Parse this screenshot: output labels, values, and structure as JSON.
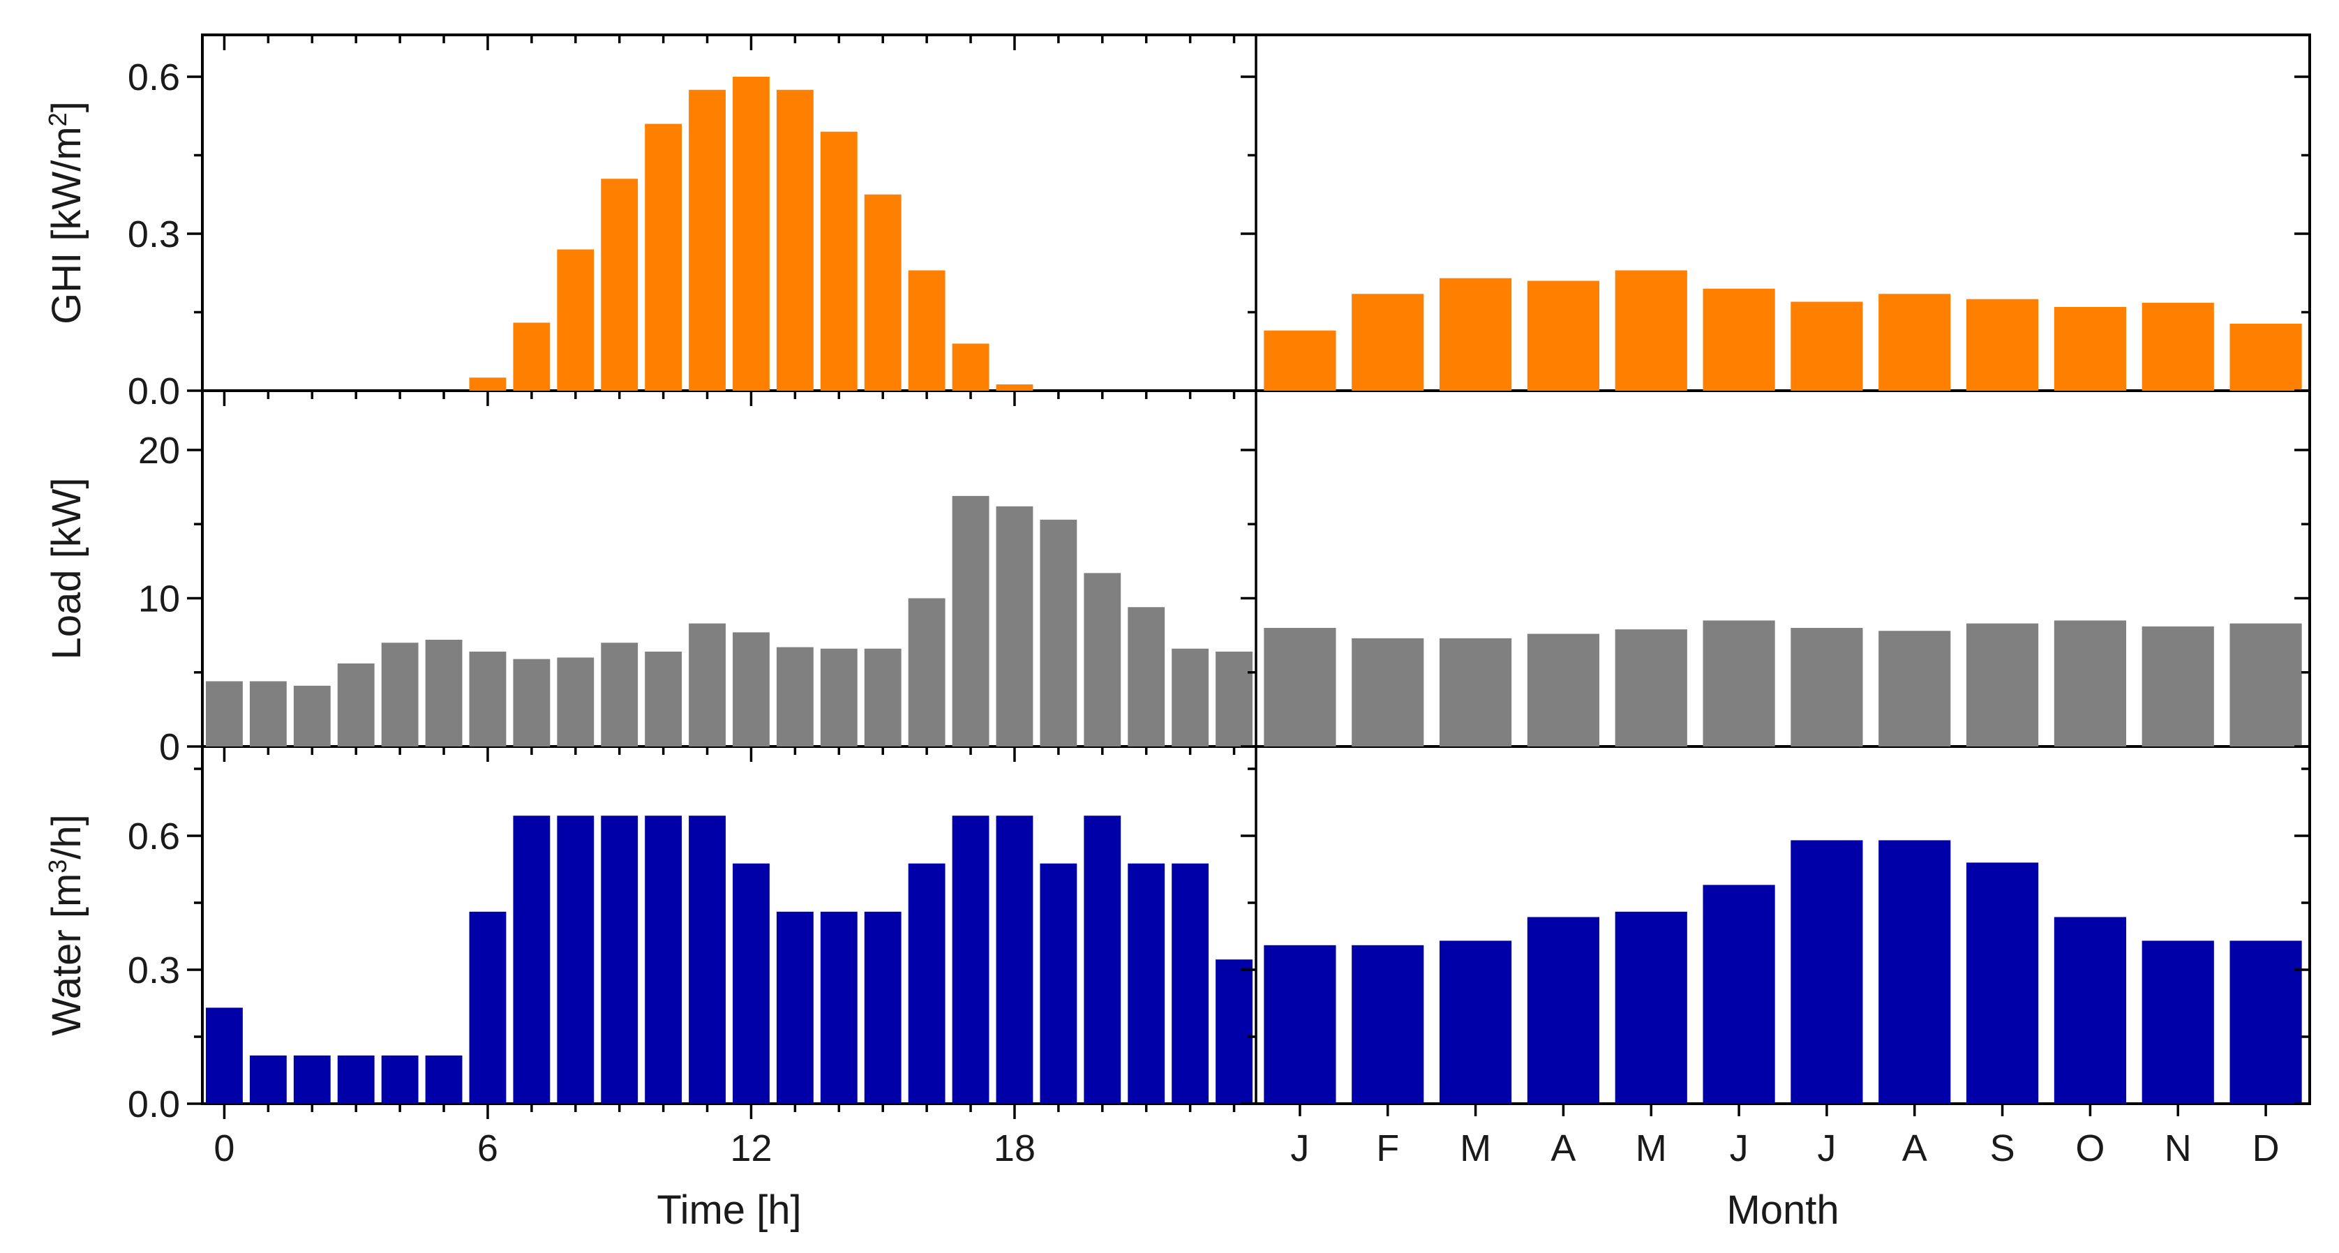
{
  "chart_data": [
    {
      "type": "bar",
      "panel": "hourly-ghi",
      "title": "",
      "ylabel": "GHI [kW/m2]",
      "ylabel_parts": {
        "base": "GHI [kW/m",
        "sup": "2",
        "end": "]"
      },
      "x": [
        0,
        1,
        2,
        3,
        4,
        5,
        6,
        7,
        8,
        9,
        10,
        11,
        12,
        13,
        14,
        15,
        16,
        17,
        18,
        19,
        20,
        21,
        22,
        23
      ],
      "values": [
        0,
        0,
        0,
        0,
        0,
        0,
        0.025,
        0.13,
        0.27,
        0.405,
        0.51,
        0.575,
        0.6,
        0.575,
        0.495,
        0.375,
        0.23,
        0.09,
        0.012,
        0,
        0,
        0,
        0,
        0
      ],
      "ylim": [
        0,
        0.68
      ],
      "yticks": [
        0.0,
        0.3,
        0.6
      ],
      "ytick_labels": [
        "0.0",
        "0.3",
        "0.6"
      ],
      "color": "#FF8000"
    },
    {
      "type": "bar",
      "panel": "monthly-ghi",
      "title": "",
      "categories": [
        "J",
        "F",
        "M",
        "A",
        "M",
        "J",
        "J",
        "A",
        "S",
        "O",
        "N",
        "D"
      ],
      "values": [
        0.115,
        0.185,
        0.215,
        0.21,
        0.23,
        0.195,
        0.17,
        0.185,
        0.175,
        0.16,
        0.168,
        0.128
      ],
      "ylim": [
        0,
        0.68
      ],
      "yticks": [
        0.0,
        0.3,
        0.6
      ],
      "color": "#FF8000"
    },
    {
      "type": "bar",
      "panel": "hourly-load",
      "title": "",
      "ylabel": "Load [kW]",
      "x": [
        0,
        1,
        2,
        3,
        4,
        5,
        6,
        7,
        8,
        9,
        10,
        11,
        12,
        13,
        14,
        15,
        16,
        17,
        18,
        19,
        20,
        21,
        22,
        23
      ],
      "values": [
        4.4,
        4.4,
        4.1,
        5.6,
        7.0,
        7.2,
        6.4,
        5.9,
        6.0,
        7.0,
        6.4,
        8.3,
        7.7,
        6.7,
        6.6,
        6.6,
        10.0,
        16.9,
        16.2,
        15.3,
        11.7,
        9.4,
        6.6,
        6.4
      ],
      "ylim": [
        0,
        24
      ],
      "yticks": [
        0,
        10,
        20
      ],
      "ytick_labels": [
        "0",
        "10",
        "20"
      ],
      "color": "#808080"
    },
    {
      "type": "bar",
      "panel": "monthly-load",
      "title": "",
      "categories": [
        "J",
        "F",
        "M",
        "A",
        "M",
        "J",
        "J",
        "A",
        "S",
        "O",
        "N",
        "D"
      ],
      "values": [
        8.0,
        7.3,
        7.3,
        7.6,
        7.9,
        8.5,
        8.0,
        7.8,
        8.3,
        8.5,
        8.1,
        8.3
      ],
      "ylim": [
        0,
        24
      ],
      "yticks": [
        0,
        10,
        20
      ],
      "color": "#808080"
    },
    {
      "type": "bar",
      "panel": "hourly-water",
      "title": "",
      "ylabel": "Water [m3/h]",
      "ylabel_parts": {
        "base": "Water [m",
        "sup": "3",
        "end": "/h]"
      },
      "xlabel": "Time [h]",
      "x": [
        0,
        1,
        2,
        3,
        4,
        5,
        6,
        7,
        8,
        9,
        10,
        11,
        12,
        13,
        14,
        15,
        16,
        17,
        18,
        19,
        20,
        21,
        22,
        23
      ],
      "values": [
        0.215,
        0.108,
        0.108,
        0.108,
        0.108,
        0.108,
        0.43,
        0.645,
        0.645,
        0.645,
        0.645,
        0.645,
        0.538,
        0.43,
        0.43,
        0.43,
        0.538,
        0.645,
        0.645,
        0.538,
        0.645,
        0.538,
        0.538,
        0.323
      ],
      "ylim": [
        0,
        0.8
      ],
      "yticks": [
        0.0,
        0.3,
        0.6
      ],
      "ytick_labels": [
        "0.0",
        "0.3",
        "0.6"
      ],
      "xticks": [
        0,
        6,
        12,
        18
      ],
      "xtick_labels": [
        "0",
        "6",
        "12",
        "18"
      ],
      "color": "#0000A8"
    },
    {
      "type": "bar",
      "panel": "monthly-water",
      "title": "",
      "xlabel": "Month",
      "categories": [
        "J",
        "F",
        "M",
        "A",
        "M",
        "J",
        "J",
        "A",
        "S",
        "O",
        "N",
        "D"
      ],
      "values": [
        0.355,
        0.355,
        0.365,
        0.418,
        0.43,
        0.49,
        0.59,
        0.59,
        0.54,
        0.418,
        0.365,
        0.365
      ],
      "ylim": [
        0,
        0.8
      ],
      "yticks": [
        0.0,
        0.3,
        0.6
      ],
      "color": "#0000A8"
    }
  ]
}
